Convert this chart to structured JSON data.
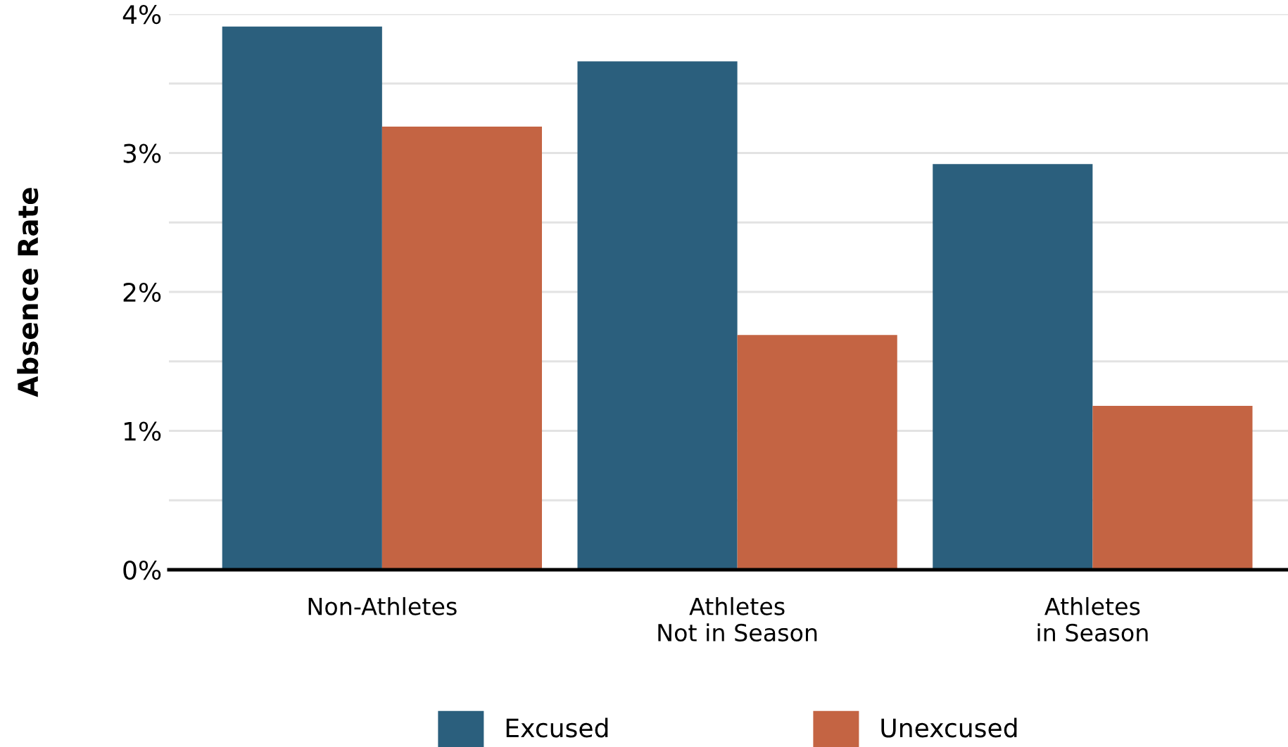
{
  "chart_data": {
    "type": "bar",
    "ylabel": "Absence Rate",
    "categories": [
      "Non-Athletes",
      "Athletes\nNot in Season",
      "Athletes\nin Season"
    ],
    "series": [
      {
        "name": "Excused",
        "color": "#2b5f7d",
        "values": [
          3.91,
          3.66,
          2.92
        ]
      },
      {
        "name": "Unexcused",
        "color": "#c46443",
        "values": [
          3.19,
          1.69,
          1.18
        ]
      }
    ],
    "ylim": [
      0,
      4
    ],
    "yticks": [
      {
        "value": 0,
        "label": "0%"
      },
      {
        "value": 0.5,
        "label": null
      },
      {
        "value": 1,
        "label": "1%"
      },
      {
        "value": 1.5,
        "label": null
      },
      {
        "value": 2,
        "label": "2%"
      },
      {
        "value": 2.5,
        "label": null
      },
      {
        "value": 3,
        "label": "3%"
      },
      {
        "value": 3.5,
        "label": null
      },
      {
        "value": 4,
        "label": "4%"
      }
    ],
    "grid": "y",
    "legend": "bottom"
  }
}
